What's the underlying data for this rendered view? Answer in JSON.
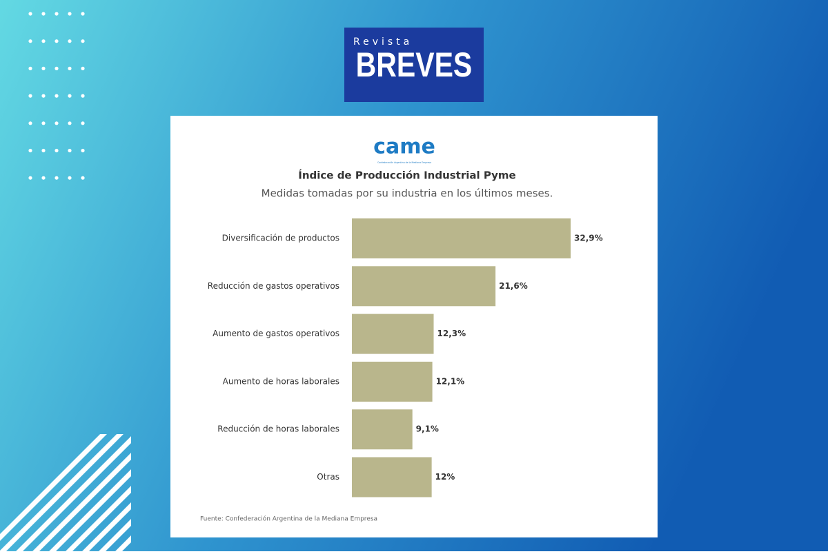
{
  "header": {
    "brand_small": "Revista",
    "brand": "BREVES"
  },
  "logo": {
    "name": "came",
    "tagline": "Confederación Argentina de la Mediana Empresa"
  },
  "chart_data": {
    "type": "bar",
    "orientation": "horizontal",
    "title": "Índice de Producción Industrial Pyme",
    "subtitle": "Medidas tomadas por su industria en los últimos meses.",
    "categories": [
      "Diversificación de productos",
      "Reducción de gastos operativos",
      "Aumento de gastos operativos",
      "Aumento de horas laborales",
      "Reducción de horas laborales",
      "Otras"
    ],
    "values": [
      32.9,
      21.6,
      12.3,
      12.1,
      9.1,
      12
    ],
    "value_labels": [
      "32,9%",
      "21,6%",
      "12,3%",
      "12,1%",
      "9,1%",
      "12%"
    ],
    "color": "#b9b68c",
    "source": "Fuente: Confederación Argentina de la Mediana Empresa"
  }
}
